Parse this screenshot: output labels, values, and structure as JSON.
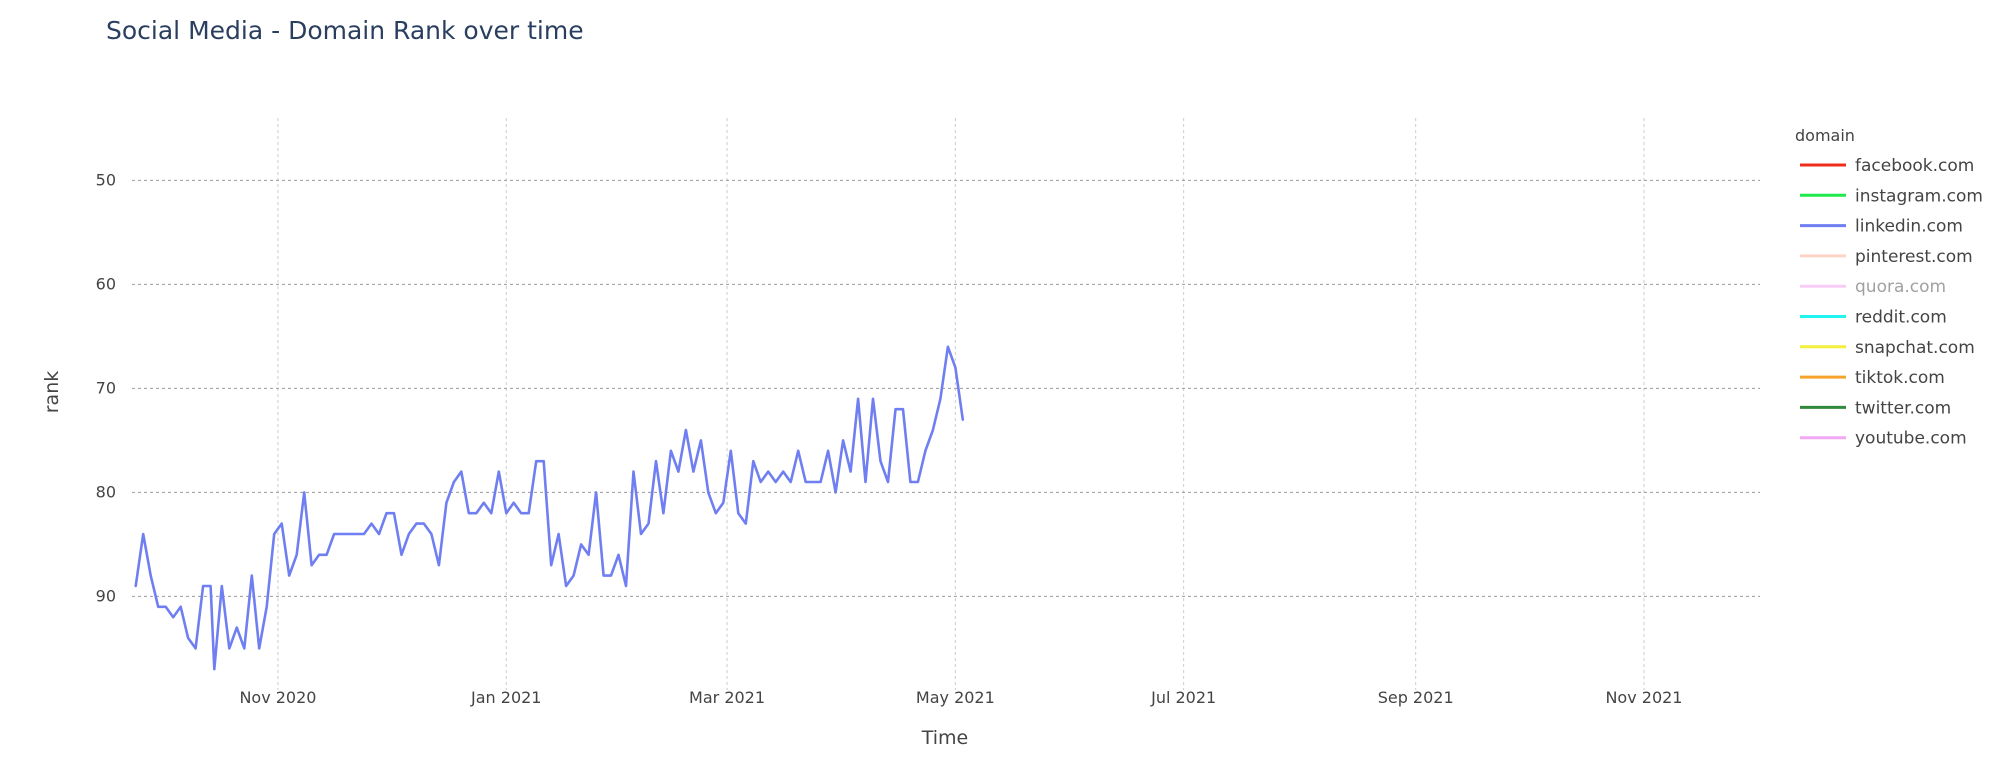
{
  "chart_data": {
    "type": "line",
    "title": "Social Media - Domain Rank over time",
    "xlabel": "Time",
    "ylabel": "rank",
    "x_range": [
      "2020-09-23",
      "2021-12-02"
    ],
    "y_range_reversed": [
      99,
      44
    ],
    "x_ticks": [
      {
        "date": "2020-11-01",
        "label": "Nov 2020"
      },
      {
        "date": "2021-01-01",
        "label": "Jan 2021"
      },
      {
        "date": "2021-03-01",
        "label": "Mar 2021"
      },
      {
        "date": "2021-05-01",
        "label": "May 2021"
      },
      {
        "date": "2021-07-01",
        "label": "Jul 2021"
      },
      {
        "date": "2021-09-01",
        "label": "Sep 2021"
      },
      {
        "date": "2021-11-01",
        "label": "Nov 2021"
      }
    ],
    "y_ticks": [
      50,
      60,
      70,
      80,
      90
    ],
    "grid": true,
    "legend_title": "domain",
    "legend_position": "right",
    "series": [
      {
        "name": "facebook.com",
        "color": "#ef2d1a",
        "visible": true,
        "points": []
      },
      {
        "name": "instagram.com",
        "color": "#1ee84a",
        "visible": true,
        "points": []
      },
      {
        "name": "linkedin.com",
        "color": "#6f7ff2",
        "visible": true,
        "points": [
          [
            "2020-09-24",
            89
          ],
          [
            "2020-09-26",
            84
          ],
          [
            "2020-09-28",
            88
          ],
          [
            "2020-09-30",
            91
          ],
          [
            "2020-10-02",
            91
          ],
          [
            "2020-10-04",
            92
          ],
          [
            "2020-10-06",
            91
          ],
          [
            "2020-10-08",
            94
          ],
          [
            "2020-10-10",
            95
          ],
          [
            "2020-10-12",
            89
          ],
          [
            "2020-10-14",
            89
          ],
          [
            "2020-10-15",
            97
          ],
          [
            "2020-10-17",
            89
          ],
          [
            "2020-10-19",
            95
          ],
          [
            "2020-10-21",
            93
          ],
          [
            "2020-10-23",
            95
          ],
          [
            "2020-10-25",
            88
          ],
          [
            "2020-10-27",
            95
          ],
          [
            "2020-10-29",
            91
          ],
          [
            "2020-10-31",
            84
          ],
          [
            "2020-11-02",
            83
          ],
          [
            "2020-11-04",
            88
          ],
          [
            "2020-11-06",
            86
          ],
          [
            "2020-11-08",
            80
          ],
          [
            "2020-11-10",
            87
          ],
          [
            "2020-11-12",
            86
          ],
          [
            "2020-11-14",
            86
          ],
          [
            "2020-11-16",
            84
          ],
          [
            "2020-11-20",
            84
          ],
          [
            "2020-11-24",
            84
          ],
          [
            "2020-11-26",
            83
          ],
          [
            "2020-11-28",
            84
          ],
          [
            "2020-11-30",
            82
          ],
          [
            "2020-12-02",
            82
          ],
          [
            "2020-12-04",
            86
          ],
          [
            "2020-12-06",
            84
          ],
          [
            "2020-12-08",
            83
          ],
          [
            "2020-12-10",
            83
          ],
          [
            "2020-12-12",
            84
          ],
          [
            "2020-12-14",
            87
          ],
          [
            "2020-12-16",
            81
          ],
          [
            "2020-12-18",
            79
          ],
          [
            "2020-12-20",
            78
          ],
          [
            "2020-12-22",
            82
          ],
          [
            "2020-12-24",
            82
          ],
          [
            "2020-12-26",
            81
          ],
          [
            "2020-12-28",
            82
          ],
          [
            "2020-12-30",
            78
          ],
          [
            "2021-01-01",
            82
          ],
          [
            "2021-01-03",
            81
          ],
          [
            "2021-01-05",
            82
          ],
          [
            "2021-01-07",
            82
          ],
          [
            "2021-01-09",
            77
          ],
          [
            "2021-01-11",
            77
          ],
          [
            "2021-01-13",
            87
          ],
          [
            "2021-01-15",
            84
          ],
          [
            "2021-01-17",
            89
          ],
          [
            "2021-01-19",
            88
          ],
          [
            "2021-01-21",
            85
          ],
          [
            "2021-01-23",
            86
          ],
          [
            "2021-01-25",
            80
          ],
          [
            "2021-01-27",
            88
          ],
          [
            "2021-01-29",
            88
          ],
          [
            "2021-01-31",
            86
          ],
          [
            "2021-02-02",
            89
          ],
          [
            "2021-02-04",
            78
          ],
          [
            "2021-02-06",
            84
          ],
          [
            "2021-02-08",
            83
          ],
          [
            "2021-02-10",
            77
          ],
          [
            "2021-02-12",
            82
          ],
          [
            "2021-02-14",
            76
          ],
          [
            "2021-02-16",
            78
          ],
          [
            "2021-02-18",
            74
          ],
          [
            "2021-02-20",
            78
          ],
          [
            "2021-02-22",
            75
          ],
          [
            "2021-02-24",
            80
          ],
          [
            "2021-02-26",
            82
          ],
          [
            "2021-02-28",
            81
          ],
          [
            "2021-03-02",
            76
          ],
          [
            "2021-03-04",
            82
          ],
          [
            "2021-03-06",
            83
          ],
          [
            "2021-03-08",
            77
          ],
          [
            "2021-03-10",
            79
          ],
          [
            "2021-03-12",
            78
          ],
          [
            "2021-03-14",
            79
          ],
          [
            "2021-03-16",
            78
          ],
          [
            "2021-03-18",
            79
          ],
          [
            "2021-03-20",
            76
          ],
          [
            "2021-03-22",
            79
          ],
          [
            "2021-03-24",
            79
          ],
          [
            "2021-03-26",
            79
          ],
          [
            "2021-03-28",
            76
          ],
          [
            "2021-03-30",
            80
          ],
          [
            "2021-04-01",
            75
          ],
          [
            "2021-04-03",
            78
          ],
          [
            "2021-04-05",
            71
          ],
          [
            "2021-04-07",
            79
          ],
          [
            "2021-04-09",
            71
          ],
          [
            "2021-04-11",
            77
          ],
          [
            "2021-04-13",
            79
          ],
          [
            "2021-04-15",
            72
          ],
          [
            "2021-04-17",
            72
          ],
          [
            "2021-04-19",
            79
          ],
          [
            "2021-04-21",
            79
          ],
          [
            "2021-04-23",
            76
          ],
          [
            "2021-04-25",
            74
          ],
          [
            "2021-04-27",
            71
          ],
          [
            "2021-04-29",
            66
          ],
          [
            "2021-05-01",
            68
          ],
          [
            "2021-05-03",
            73
          ]
        ]
      },
      {
        "name": "pinterest.com",
        "color": "#fdd3c4",
        "visible": true,
        "points": []
      },
      {
        "name": "quora.com",
        "color": "#f59af0",
        "visible": false,
        "points": []
      },
      {
        "name": "reddit.com",
        "color": "#22f4f1",
        "visible": true,
        "points": []
      },
      {
        "name": "snapchat.com",
        "color": "#f3f03c",
        "visible": true,
        "points": []
      },
      {
        "name": "tiktok.com",
        "color": "#f8a22e",
        "visible": true,
        "points": []
      },
      {
        "name": "twitter.com",
        "color": "#2f8a3c",
        "visible": true,
        "points": []
      },
      {
        "name": "youtube.com",
        "color": "#f3a8f3",
        "visible": true,
        "points": []
      }
    ]
  }
}
